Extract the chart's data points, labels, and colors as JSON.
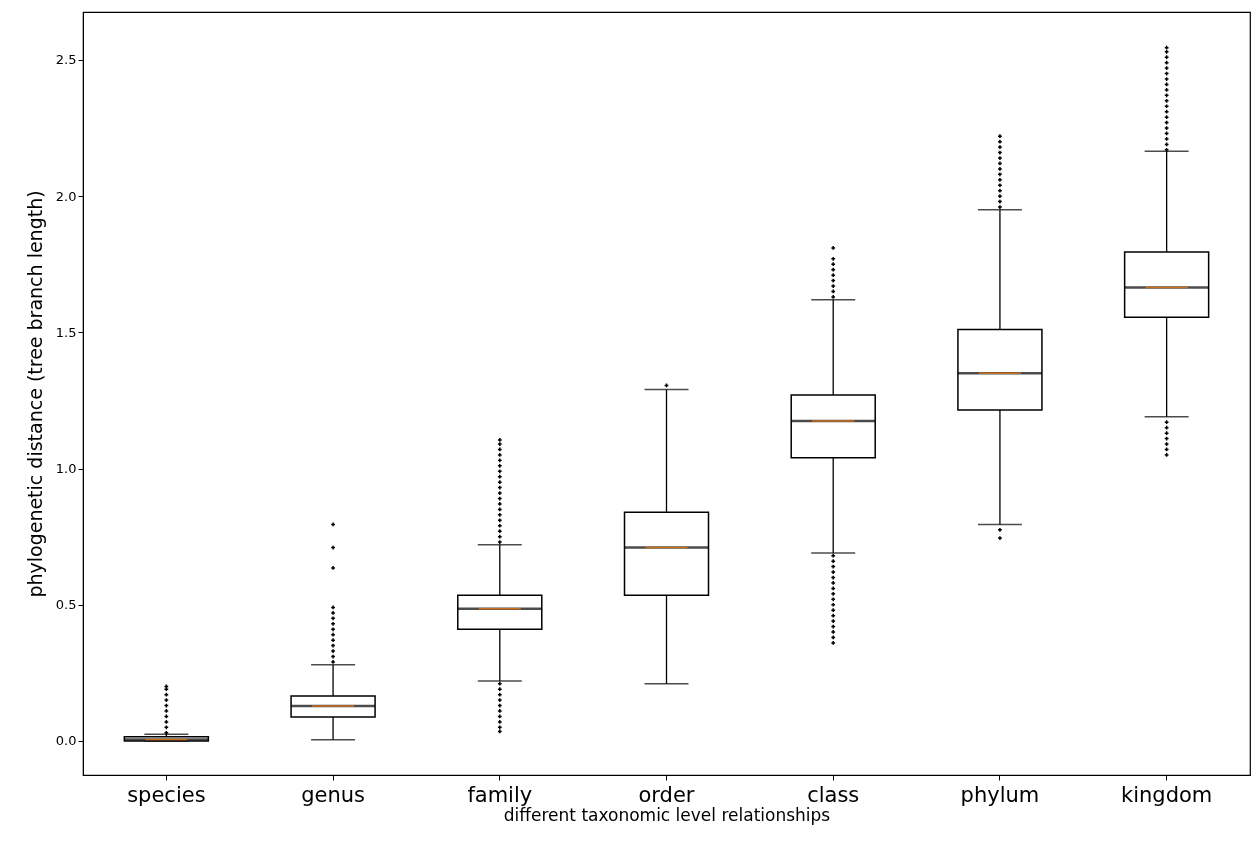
{
  "chart_data": {
    "type": "box",
    "xlabel": "different taxonomic level relationships",
    "ylabel": "phylogenetic distance (tree branch length)",
    "categories": [
      "species",
      "genus",
      "family",
      "order",
      "class",
      "phylum",
      "kingdom"
    ],
    "ylim": [
      -0.125,
      2.676
    ],
    "yticks": [
      {
        "value": 0,
        "label": "0.0"
      },
      {
        "value": 0.5,
        "label": "0.5"
      },
      {
        "value": 1,
        "label": "1.0"
      },
      {
        "value": 1.5,
        "label": "1.5"
      },
      {
        "value": 2,
        "label": "2.0"
      },
      {
        "value": 2.5,
        "label": "2.5"
      }
    ],
    "grid": false,
    "marker": "cross",
    "series": [
      {
        "color": "#000000",
        "boxes": [
          {
            "low": 0,
            "q1": 0.0,
            "median": 0.005,
            "q3": 0.015,
            "high": 0.025,
            "outliers": [
              0.03,
              0.05,
              0.07,
              0.09,
              0.11,
              0.13,
              0.15,
              0.17,
              0.19,
              0.2
            ]
          },
          {
            "low": 0.004,
            "q1": 0.088,
            "median": 0.128,
            "q3": 0.165,
            "high": 0.28,
            "outliers": [
              0.29,
              0.31,
              0.33,
              0.35,
              0.37,
              0.39,
              0.41,
              0.43,
              0.45,
              0.47,
              0.49,
              0.635,
              0.71,
              0.795
            ]
          },
          {
            "low": 0.22,
            "q1": 0.41,
            "median": 0.485,
            "q3": 0.535,
            "high": 0.72,
            "outliers": [
              0.035,
              0.05,
              0.07,
              0.09,
              0.11,
              0.13,
              0.15,
              0.17,
              0.19,
              0.21,
              0.73,
              0.75,
              0.77,
              0.79,
              0.81,
              0.83,
              0.85,
              0.87,
              0.89,
              0.91,
              0.93,
              0.95,
              0.97,
              0.99,
              1.01,
              1.03,
              1.05,
              1.07,
              1.09,
              1.105
            ]
          },
          {
            "low": 0.21,
            "q1": 0.535,
            "median": 0.71,
            "q3": 0.84,
            "high": 1.29,
            "outliers": [
              1.305
            ]
          },
          {
            "low": 0.69,
            "q1": 1.04,
            "median": 1.175,
            "q3": 1.27,
            "high": 1.62,
            "outliers": [
              0.36,
              0.38,
              0.4,
              0.42,
              0.44,
              0.46,
              0.48,
              0.5,
              0.52,
              0.54,
              0.56,
              0.58,
              0.6,
              0.62,
              0.64,
              0.66,
              0.68,
              1.63,
              1.65,
              1.67,
              1.69,
              1.71,
              1.73,
              1.75,
              1.77,
              1.81
            ]
          },
          {
            "low": 0.795,
            "q1": 1.215,
            "median": 1.35,
            "q3": 1.51,
            "high": 1.95,
            "outliers": [
              0.745,
              0.775,
              1.96,
              1.98,
              2.0,
              2.02,
              2.04,
              2.06,
              2.08,
              2.1,
              2.12,
              2.14,
              2.16,
              2.18,
              2.2,
              2.22
            ]
          },
          {
            "low": 1.19,
            "q1": 1.555,
            "median": 1.665,
            "q3": 1.795,
            "high": 2.165,
            "outliers": [
              1.05,
              1.07,
              1.09,
              1.11,
              1.13,
              1.15,
              1.17,
              2.17,
              2.19,
              2.21,
              2.23,
              2.25,
              2.27,
              2.29,
              2.31,
              2.33,
              2.35,
              2.37,
              2.39,
              2.41,
              2.43,
              2.45,
              2.47,
              2.49,
              2.51,
              2.53,
              2.545
            ]
          }
        ]
      }
    ]
  }
}
